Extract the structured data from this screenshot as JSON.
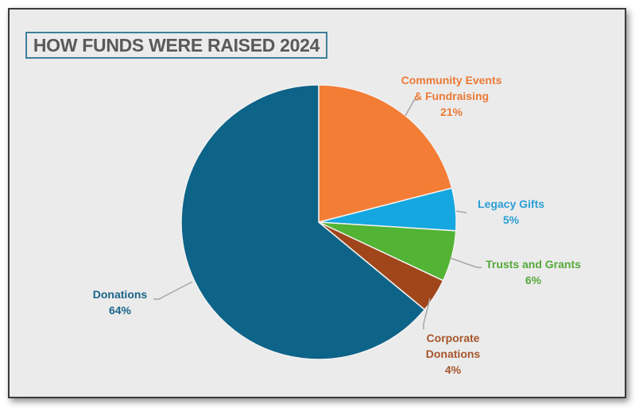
{
  "chart_data": {
    "type": "pie",
    "title": "HOW FUNDS WERE RAISED 2024",
    "slices": [
      {
        "label_lines": [
          "Community Events",
          "& Fundraising"
        ],
        "label": "Community Events & Fundraising",
        "value": 21,
        "value_label": "21%",
        "color": "#f47d35",
        "text_color": "#ec7a35"
      },
      {
        "label_lines": [
          "Legacy Gifts"
        ],
        "label": "Legacy Gifts",
        "value": 5,
        "value_label": "5%",
        "color": "#15a7e0",
        "text_color": "#2a9fd6"
      },
      {
        "label_lines": [
          "Trusts and Grants"
        ],
        "label": "Trusts and Grants",
        "value": 6,
        "value_label": "6%",
        "color": "#53b334",
        "text_color": "#55a83a"
      },
      {
        "label_lines": [
          "Corporate",
          "Donations"
        ],
        "label": "Corporate Donations",
        "value": 4,
        "value_label": "4%",
        "color": "#a0461a",
        "text_color": "#a5552a"
      },
      {
        "label_lines": [
          "Donations"
        ],
        "label": "Donations",
        "value": 64,
        "value_label": "64%",
        "color": "#0e6388",
        "text_color": "#1a6488"
      }
    ],
    "start_angle": "top, clockwise",
    "legend": "none (data labels with leader lines)"
  }
}
